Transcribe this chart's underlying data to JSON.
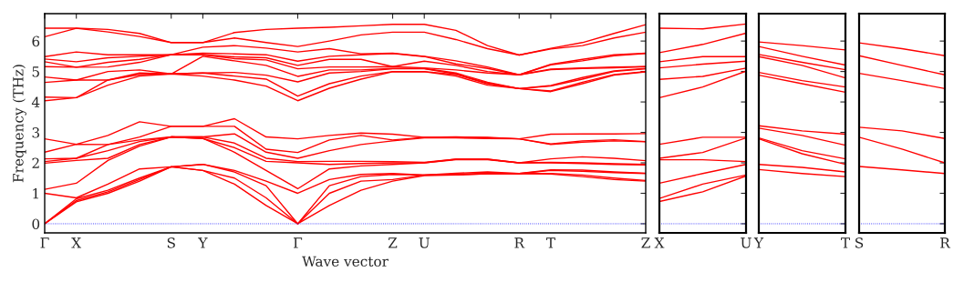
{
  "chart_data": [
    {
      "type": "line",
      "xlabel": "Wave vector",
      "ylabel": "Frequency (THz)",
      "ylim": [
        -0.3,
        6.9
      ],
      "yticks": [
        0,
        1,
        2,
        3,
        4,
        5,
        6
      ],
      "categories": [
        "Γ",
        "X",
        null,
        null,
        "S",
        "Y",
        null,
        null,
        "Γ",
        null,
        null,
        "Z",
        "U",
        null,
        null,
        "R",
        "T",
        null,
        null,
        "Z"
      ],
      "ref_lines": [
        {
          "axis": "y",
          "value": 0,
          "color": "#0000ff",
          "line_style": "dotted"
        }
      ],
      "series": [
        {
          "color": "#ff0000",
          "values": [
            0,
            0.72,
            1.0,
            1.4,
            1.87,
            1.75,
            1.3,
            0.6,
            0,
            0.6,
            1.1,
            1.4,
            1.58,
            1.6,
            1.64,
            1.65,
            1.63,
            1.55,
            1.45,
            1.4
          ]
        },
        {
          "color": "#ff0000",
          "values": [
            0,
            0.76,
            1.05,
            1.45,
            1.87,
            1.75,
            1.5,
            0.85,
            0,
            1.0,
            1.4,
            1.45,
            1.6,
            1.61,
            1.64,
            1.65,
            1.65,
            1.6,
            1.5,
            1.42
          ]
        },
        {
          "color": "#ff0000",
          "values": [
            0,
            0.82,
            1.1,
            1.5,
            1.87,
            1.95,
            1.7,
            1.25,
            0,
            1.25,
            1.55,
            1.62,
            1.6,
            1.63,
            1.66,
            1.65,
            1.75,
            1.72,
            1.68,
            1.65
          ]
        },
        {
          "color": "#ff0000",
          "values": [
            1.0,
            0.85,
            1.3,
            1.8,
            1.87,
            1.95,
            1.75,
            1.4,
            1.0,
            1.45,
            1.62,
            1.65,
            1.6,
            1.66,
            1.7,
            1.65,
            1.77,
            1.76,
            1.7,
            1.66
          ]
        },
        {
          "color": "#ff0000",
          "values": [
            1.13,
            1.33,
            2.08,
            2.55,
            2.85,
            2.8,
            2.35,
            1.75,
            1.15,
            1.8,
            1.9,
            1.95,
            2.0,
            2.1,
            2.1,
            2.0,
            2.0,
            1.98,
            1.95,
            1.93
          ]
        },
        {
          "color": "#ff0000",
          "values": [
            1.99,
            2.08,
            2.15,
            2.6,
            2.85,
            2.8,
            2.5,
            2.05,
            2.0,
            1.95,
            1.98,
            2.0,
            2.0,
            2.12,
            2.12,
            2.0,
            2.02,
            2.0,
            1.97,
            1.95
          ]
        },
        {
          "color": "#ff0000",
          "values": [
            2.04,
            2.15,
            2.4,
            2.7,
            2.85,
            2.85,
            2.65,
            2.15,
            2.04,
            2.05,
            2.05,
            2.04,
            2.02,
            2.12,
            2.12,
            2.0,
            2.13,
            2.2,
            2.15,
            2.07
          ]
        },
        {
          "color": "#ff0000",
          "values": [
            2.13,
            2.15,
            2.6,
            2.75,
            2.85,
            2.85,
            2.95,
            2.35,
            2.15,
            2.4,
            2.6,
            2.72,
            2.82,
            2.82,
            2.8,
            2.79,
            2.6,
            2.68,
            2.72,
            2.69
          ]
        },
        {
          "color": "#ff0000",
          "values": [
            2.35,
            2.61,
            2.6,
            2.85,
            3.2,
            3.2,
            3.2,
            2.45,
            2.34,
            2.75,
            2.9,
            2.75,
            2.84,
            2.84,
            2.82,
            2.79,
            2.62,
            2.72,
            2.76,
            2.7
          ]
        },
        {
          "color": "#ff0000",
          "values": [
            2.79,
            2.61,
            2.9,
            3.35,
            3.2,
            3.2,
            3.45,
            2.85,
            2.79,
            2.9,
            2.98,
            2.94,
            2.84,
            2.85,
            2.84,
            2.79,
            2.94,
            2.95,
            2.95,
            2.96
          ]
        },
        {
          "color": "#ff0000",
          "values": [
            4.04,
            4.14,
            4.55,
            4.85,
            4.92,
            4.85,
            4.72,
            4.52,
            4.04,
            4.45,
            4.75,
            4.99,
            4.99,
            4.85,
            4.55,
            4.44,
            4.34,
            4.6,
            4.88,
            4.99
          ]
        },
        {
          "color": "#ff0000",
          "values": [
            4.16,
            4.14,
            4.72,
            4.9,
            4.92,
            4.95,
            4.85,
            4.75,
            4.19,
            4.6,
            4.85,
            5.0,
            5.0,
            4.9,
            4.6,
            4.44,
            4.36,
            4.65,
            4.9,
            5.0
          ]
        },
        {
          "color": "#ff0000",
          "values": [
            4.64,
            4.72,
            4.72,
            4.95,
            4.92,
            4.95,
            4.97,
            4.88,
            4.66,
            4.95,
            5.0,
            5.09,
            5.09,
            4.92,
            4.62,
            4.44,
            4.52,
            4.75,
            5.0,
            5.09
          ]
        },
        {
          "color": "#ff0000",
          "values": [
            4.82,
            4.72,
            5.0,
            5.05,
            4.92,
            5.5,
            5.35,
            5.2,
            4.84,
            5.05,
            5.05,
            5.1,
            5.1,
            4.95,
            4.65,
            4.44,
            4.54,
            4.8,
            5.02,
            5.1
          ]
        },
        {
          "color": "#ff0000",
          "values": [
            5.16,
            5.14,
            5.15,
            5.3,
            5.55,
            5.55,
            5.42,
            5.38,
            5.09,
            5.15,
            5.15,
            5.16,
            5.12,
            5.05,
            4.95,
            4.89,
            5.06,
            5.1,
            5.12,
            5.16
          ]
        },
        {
          "color": "#ff0000",
          "values": [
            5.32,
            5.14,
            5.3,
            5.4,
            5.55,
            5.55,
            5.48,
            5.45,
            5.2,
            5.4,
            5.4,
            5.16,
            5.34,
            5.2,
            5.0,
            4.89,
            5.08,
            5.12,
            5.15,
            5.16
          ]
        },
        {
          "color": "#ff0000",
          "values": [
            5.41,
            5.32,
            5.45,
            5.5,
            5.55,
            5.6,
            5.58,
            5.55,
            5.34,
            5.5,
            5.55,
            5.59,
            5.49,
            5.25,
            5.1,
            4.89,
            5.22,
            5.35,
            5.52,
            5.59
          ]
        },
        {
          "color": "#ff0000",
          "values": [
            5.49,
            5.64,
            5.55,
            5.55,
            5.55,
            5.8,
            5.85,
            5.77,
            5.64,
            5.75,
            5.58,
            5.6,
            5.5,
            5.35,
            5.15,
            4.89,
            5.24,
            5.4,
            5.55,
            5.6
          ]
        },
        {
          "color": "#ff0000",
          "values": [
            6.14,
            6.42,
            6.3,
            6.15,
            5.95,
            5.95,
            6.1,
            5.95,
            5.82,
            6.0,
            6.2,
            6.29,
            6.29,
            6.05,
            5.75,
            5.54,
            5.74,
            5.85,
            6.1,
            6.29
          ]
        },
        {
          "color": "#ff0000",
          "values": [
            6.42,
            6.42,
            6.38,
            6.25,
            5.95,
            5.95,
            6.28,
            6.38,
            6.42,
            6.45,
            6.5,
            6.55,
            6.55,
            6.35,
            5.85,
            5.54,
            5.76,
            5.95,
            6.25,
            6.54
          ]
        }
      ]
    },
    {
      "type": "line",
      "tick_labels": "x",
      "ylim": [
        -0.3,
        6.9
      ],
      "yticks": [
        0,
        1,
        2,
        3,
        4,
        5,
        6
      ],
      "categories": [
        "X",
        null,
        "U"
      ],
      "ref_lines": [
        {
          "axis": "y",
          "value": 0,
          "color": "#0000ff",
          "line_style": "dotted"
        }
      ],
      "series": [
        {
          "color": "#ff0000",
          "values": [
            0.73,
            1.05,
            1.57
          ]
        },
        {
          "color": "#ff0000",
          "values": [
            0.83,
            1.3,
            1.6
          ]
        },
        {
          "color": "#ff0000",
          "values": [
            1.33,
            1.65,
            1.95
          ]
        },
        {
          "color": "#ff0000",
          "values": [
            2.1,
            2.1,
            2.04
          ]
        },
        {
          "color": "#ff0000",
          "values": [
            2.15,
            2.34,
            2.82
          ]
        },
        {
          "color": "#ff0000",
          "values": [
            2.61,
            2.84,
            2.84
          ]
        },
        {
          "color": "#ff0000",
          "values": [
            4.14,
            4.49,
            5.01
          ]
        },
        {
          "color": "#ff0000",
          "values": [
            4.74,
            4.84,
            5.11
          ]
        },
        {
          "color": "#ff0000",
          "values": [
            5.12,
            5.24,
            5.34
          ]
        },
        {
          "color": "#ff0000",
          "values": [
            5.32,
            5.49,
            5.49
          ]
        },
        {
          "color": "#ff0000",
          "values": [
            5.62,
            5.89,
            6.26
          ]
        },
        {
          "color": "#ff0000",
          "values": [
            6.42,
            6.4,
            6.56
          ]
        }
      ]
    },
    {
      "type": "line",
      "tick_labels": "x",
      "ylim": [
        -0.3,
        6.9
      ],
      "yticks": [
        0,
        1,
        2,
        3,
        4,
        5,
        6
      ],
      "categories": [
        "Y",
        null,
        "T"
      ],
      "ref_lines": [
        {
          "axis": "y",
          "value": 0,
          "color": "#0000ff",
          "line_style": "dotted"
        }
      ],
      "series": [
        {
          "color": "#ff0000",
          "values": [
            1.78,
            1.65,
            1.55
          ]
        },
        {
          "color": "#ff0000",
          "values": [
            1.95,
            1.85,
            1.7
          ]
        },
        {
          "color": "#ff0000",
          "values": [
            2.79,
            2.3,
            1.95
          ]
        },
        {
          "color": "#ff0000",
          "values": [
            2.82,
            2.4,
            2.13
          ]
        },
        {
          "color": "#ff0000",
          "values": [
            3.14,
            2.9,
            2.58
          ]
        },
        {
          "color": "#ff0000",
          "values": [
            3.22,
            3.05,
            2.94
          ]
        },
        {
          "color": "#ff0000",
          "values": [
            4.88,
            4.6,
            4.32
          ]
        },
        {
          "color": "#ff0000",
          "values": [
            4.97,
            4.7,
            4.49
          ]
        },
        {
          "color": "#ff0000",
          "values": [
            5.49,
            5.2,
            4.79
          ]
        },
        {
          "color": "#ff0000",
          "values": [
            5.56,
            5.3,
            5.06
          ]
        },
        {
          "color": "#ff0000",
          "values": [
            5.82,
            5.5,
            5.21
          ]
        },
        {
          "color": "#ff0000",
          "values": [
            5.97,
            5.85,
            5.71
          ]
        }
      ]
    },
    {
      "type": "line",
      "tick_labels": "x",
      "ylim": [
        -0.3,
        6.9
      ],
      "yticks": [
        0,
        1,
        2,
        3,
        4,
        5,
        6
      ],
      "categories": [
        "S",
        null,
        "R"
      ],
      "ref_lines": [
        {
          "axis": "y",
          "value": 0,
          "color": "#0000ff",
          "line_style": "dotted"
        }
      ],
      "series": [
        {
          "color": "#ff0000",
          "values": [
            1.88,
            1.77,
            1.65
          ]
        },
        {
          "color": "#ff0000",
          "values": [
            2.84,
            2.45,
            2.0
          ]
        },
        {
          "color": "#ff0000",
          "values": [
            3.17,
            3.05,
            2.8
          ]
        },
        {
          "color": "#ff0000",
          "values": [
            4.94,
            4.7,
            4.44
          ]
        },
        {
          "color": "#ff0000",
          "values": [
            5.52,
            5.2,
            4.89
          ]
        },
        {
          "color": "#ff0000",
          "values": [
            5.94,
            5.75,
            5.52
          ]
        }
      ]
    }
  ]
}
